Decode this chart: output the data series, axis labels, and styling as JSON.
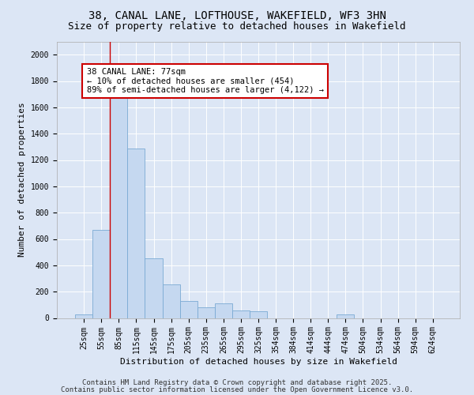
{
  "title_line1": "38, CANAL LANE, LOFTHOUSE, WAKEFIELD, WF3 3HN",
  "title_line2": "Size of property relative to detached houses in Wakefield",
  "xlabel": "Distribution of detached houses by size in Wakefield",
  "ylabel": "Number of detached properties",
  "categories": [
    "25sqm",
    "55sqm",
    "85sqm",
    "115sqm",
    "145sqm",
    "175sqm",
    "205sqm",
    "235sqm",
    "265sqm",
    "295sqm",
    "325sqm",
    "354sqm",
    "384sqm",
    "414sqm",
    "444sqm",
    "474sqm",
    "504sqm",
    "534sqm",
    "564sqm",
    "594sqm",
    "624sqm"
  ],
  "values": [
    25,
    670,
    1680,
    1290,
    455,
    255,
    130,
    80,
    110,
    60,
    50,
    0,
    0,
    0,
    0,
    25,
    0,
    0,
    0,
    0,
    0
  ],
  "bar_color": "#c5d8f0",
  "bar_edgecolor": "#7aaad4",
  "vline_color": "#cc0000",
  "annotation_text": "38 CANAL LANE: 77sqm\n← 10% of detached houses are smaller (454)\n89% of semi-detached houses are larger (4,122) →",
  "annotation_box_color": "white",
  "annotation_box_edgecolor": "#cc0000",
  "ylim": [
    0,
    2100
  ],
  "yticks": [
    0,
    200,
    400,
    600,
    800,
    1000,
    1200,
    1400,
    1600,
    1800,
    2000
  ],
  "background_color": "#dce6f5",
  "plot_bg_color": "#dce6f5",
  "grid_color": "white",
  "footer_line1": "Contains HM Land Registry data © Crown copyright and database right 2025.",
  "footer_line2": "Contains public sector information licensed under the Open Government Licence v3.0.",
  "title_fontsize": 10,
  "subtitle_fontsize": 9,
  "axis_label_fontsize": 8,
  "tick_fontsize": 7,
  "footer_fontsize": 6.5,
  "annot_fontsize": 7.5
}
